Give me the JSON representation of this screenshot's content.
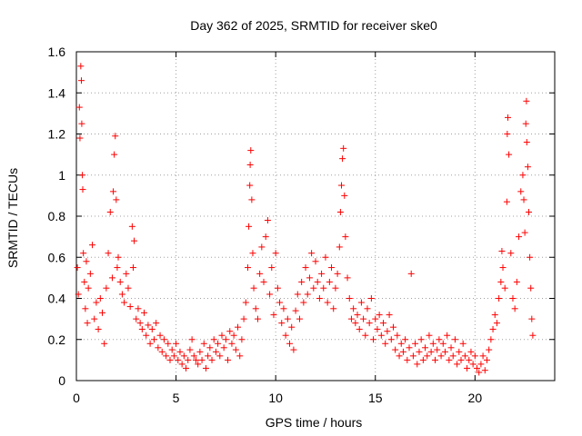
{
  "chart_data": {
    "type": "scatter",
    "title": "Day 362 of 2025, SRMTID for receiver ske0",
    "xlabel": "GPS time / hours",
    "ylabel": "SRMTID / TECUs",
    "xlim": [
      0,
      24
    ],
    "ylim": [
      0,
      1.6
    ],
    "xticks": [
      0,
      5,
      10,
      15,
      20
    ],
    "yticks": [
      0,
      0.2,
      0.4,
      0.6,
      0.8,
      1,
      1.2,
      1.4,
      1.6
    ],
    "xtick_labels": [
      "0",
      "5",
      "10",
      "15",
      "20"
    ],
    "ytick_labels": [
      "0",
      "0.2",
      "0.4",
      "0.6",
      "0.8",
      "1",
      "1.2",
      "1.4",
      "1.6"
    ],
    "grid": true,
    "marker": "+",
    "color": "#ff0000",
    "series": [
      {
        "name": "SRMTID",
        "points": [
          [
            0.05,
            0.55
          ],
          [
            0.1,
            0.42
          ],
          [
            0.15,
            1.33
          ],
          [
            0.18,
            1.18
          ],
          [
            0.22,
            1.53
          ],
          [
            0.25,
            1.46
          ],
          [
            0.27,
            1.25
          ],
          [
            0.3,
            1.0
          ],
          [
            0.32,
            0.93
          ],
          [
            0.35,
            0.62
          ],
          [
            0.4,
            0.48
          ],
          [
            0.45,
            0.35
          ],
          [
            0.5,
            0.58
          ],
          [
            0.55,
            0.28
          ],
          [
            0.6,
            0.45
          ],
          [
            0.7,
            0.52
          ],
          [
            0.8,
            0.66
          ],
          [
            0.9,
            0.3
          ],
          [
            1.0,
            0.38
          ],
          [
            1.1,
            0.25
          ],
          [
            1.2,
            0.4
          ],
          [
            1.3,
            0.33
          ],
          [
            1.4,
            0.18
          ],
          [
            1.5,
            0.45
          ],
          [
            1.6,
            0.62
          ],
          [
            1.7,
            0.82
          ],
          [
            1.8,
            0.5
          ],
          [
            1.85,
            0.92
          ],
          [
            1.9,
            1.1
          ],
          [
            1.95,
            1.19
          ],
          [
            2.0,
            0.88
          ],
          [
            2.05,
            0.55
          ],
          [
            2.1,
            0.6
          ],
          [
            2.2,
            0.48
          ],
          [
            2.3,
            0.42
          ],
          [
            2.4,
            0.38
          ],
          [
            2.5,
            0.52
          ],
          [
            2.6,
            0.45
          ],
          [
            2.7,
            0.36
          ],
          [
            2.8,
            0.75
          ],
          [
            2.85,
            0.55
          ],
          [
            2.9,
            0.68
          ],
          [
            3.0,
            0.3
          ],
          [
            3.1,
            0.35
          ],
          [
            3.2,
            0.28
          ],
          [
            3.3,
            0.25
          ],
          [
            3.4,
            0.33
          ],
          [
            3.5,
            0.22
          ],
          [
            3.6,
            0.27
          ],
          [
            3.7,
            0.18
          ],
          [
            3.8,
            0.25
          ],
          [
            3.9,
            0.2
          ],
          [
            4.0,
            0.28
          ],
          [
            4.1,
            0.16
          ],
          [
            4.2,
            0.22
          ],
          [
            4.3,
            0.14
          ],
          [
            4.4,
            0.2
          ],
          [
            4.5,
            0.12
          ],
          [
            4.6,
            0.18
          ],
          [
            4.7,
            0.1
          ],
          [
            4.8,
            0.15
          ],
          [
            4.9,
            0.12
          ],
          [
            5.0,
            0.18
          ],
          [
            5.1,
            0.1
          ],
          [
            5.2,
            0.14
          ],
          [
            5.3,
            0.08
          ],
          [
            5.4,
            0.12
          ],
          [
            5.5,
            0.06
          ],
          [
            5.6,
            0.1
          ],
          [
            5.7,
            0.15
          ],
          [
            5.8,
            0.2
          ],
          [
            5.9,
            0.12
          ],
          [
            6.0,
            0.1
          ],
          [
            6.1,
            0.08
          ],
          [
            6.2,
            0.14
          ],
          [
            6.3,
            0.1
          ],
          [
            6.4,
            0.18
          ],
          [
            6.5,
            0.06
          ],
          [
            6.6,
            0.12
          ],
          [
            6.7,
            0.16
          ],
          [
            6.8,
            0.1
          ],
          [
            6.9,
            0.2
          ],
          [
            7.0,
            0.14
          ],
          [
            7.1,
            0.18
          ],
          [
            7.2,
            0.12
          ],
          [
            7.3,
            0.22
          ],
          [
            7.4,
            0.16
          ],
          [
            7.5,
            0.2
          ],
          [
            7.6,
            0.1
          ],
          [
            7.7,
            0.24
          ],
          [
            7.8,
            0.18
          ],
          [
            7.9,
            0.22
          ],
          [
            8.0,
            0.15
          ],
          [
            8.1,
            0.26
          ],
          [
            8.2,
            0.12
          ],
          [
            8.3,
            0.2
          ],
          [
            8.4,
            0.3
          ],
          [
            8.5,
            0.38
          ],
          [
            8.6,
            0.55
          ],
          [
            8.65,
            0.75
          ],
          [
            8.7,
            0.95
          ],
          [
            8.72,
            1.05
          ],
          [
            8.75,
            1.12
          ],
          [
            8.8,
            0.88
          ],
          [
            8.85,
            0.62
          ],
          [
            8.9,
            0.45
          ],
          [
            9.0,
            0.35
          ],
          [
            9.1,
            0.3
          ],
          [
            9.2,
            0.52
          ],
          [
            9.3,
            0.65
          ],
          [
            9.4,
            0.48
          ],
          [
            9.5,
            0.7
          ],
          [
            9.6,
            0.78
          ],
          [
            9.7,
            0.42
          ],
          [
            9.8,
            0.55
          ],
          [
            9.9,
            0.32
          ],
          [
            10.0,
            0.62
          ],
          [
            10.1,
            0.45
          ],
          [
            10.2,
            0.38
          ],
          [
            10.3,
            0.28
          ],
          [
            10.4,
            0.35
          ],
          [
            10.5,
            0.22
          ],
          [
            10.6,
            0.3
          ],
          [
            10.7,
            0.18
          ],
          [
            10.8,
            0.26
          ],
          [
            10.9,
            0.15
          ],
          [
            11.0,
            0.34
          ],
          [
            11.1,
            0.42
          ],
          [
            11.2,
            0.3
          ],
          [
            11.3,
            0.48
          ],
          [
            11.4,
            0.38
          ],
          [
            11.5,
            0.55
          ],
          [
            11.6,
            0.42
          ],
          [
            11.7,
            0.5
          ],
          [
            11.8,
            0.62
          ],
          [
            11.9,
            0.45
          ],
          [
            12.0,
            0.58
          ],
          [
            12.1,
            0.48
          ],
          [
            12.2,
            0.4
          ],
          [
            12.3,
            0.52
          ],
          [
            12.4,
            0.45
          ],
          [
            12.5,
            0.6
          ],
          [
            12.6,
            0.38
          ],
          [
            12.7,
            0.48
          ],
          [
            12.8,
            0.55
          ],
          [
            12.9,
            0.35
          ],
          [
            13.0,
            0.45
          ],
          [
            13.1,
            0.52
          ],
          [
            13.2,
            0.65
          ],
          [
            13.25,
            0.82
          ],
          [
            13.3,
            0.95
          ],
          [
            13.35,
            1.08
          ],
          [
            13.4,
            1.13
          ],
          [
            13.45,
            0.9
          ],
          [
            13.5,
            0.7
          ],
          [
            13.6,
            0.5
          ],
          [
            13.7,
            0.4
          ],
          [
            13.8,
            0.3
          ],
          [
            13.9,
            0.35
          ],
          [
            14.0,
            0.28
          ],
          [
            14.1,
            0.32
          ],
          [
            14.2,
            0.25
          ],
          [
            14.3,
            0.38
          ],
          [
            14.4,
            0.3
          ],
          [
            14.5,
            0.22
          ],
          [
            14.6,
            0.35
          ],
          [
            14.7,
            0.28
          ],
          [
            14.8,
            0.4
          ],
          [
            14.9,
            0.2
          ],
          [
            15.0,
            0.3
          ],
          [
            15.1,
            0.25
          ],
          [
            15.2,
            0.32
          ],
          [
            15.3,
            0.22
          ],
          [
            15.4,
            0.28
          ],
          [
            15.5,
            0.18
          ],
          [
            15.6,
            0.24
          ],
          [
            15.7,
            0.32
          ],
          [
            15.8,
            0.2
          ],
          [
            15.9,
            0.26
          ],
          [
            16.0,
            0.15
          ],
          [
            16.1,
            0.22
          ],
          [
            16.2,
            0.12
          ],
          [
            16.3,
            0.18
          ],
          [
            16.4,
            0.14
          ],
          [
            16.5,
            0.2
          ],
          [
            16.6,
            0.1
          ],
          [
            16.7,
            0.16
          ],
          [
            16.8,
            0.52
          ],
          [
            16.9,
            0.12
          ],
          [
            17.0,
            0.18
          ],
          [
            17.1,
            0.08
          ],
          [
            17.2,
            0.14
          ],
          [
            17.3,
            0.2
          ],
          [
            17.4,
            0.1
          ],
          [
            17.5,
            0.16
          ],
          [
            17.6,
            0.12
          ],
          [
            17.7,
            0.22
          ],
          [
            17.8,
            0.14
          ],
          [
            17.9,
            0.18
          ],
          [
            18.0,
            0.1
          ],
          [
            18.1,
            0.15
          ],
          [
            18.2,
            0.2
          ],
          [
            18.3,
            0.12
          ],
          [
            18.4,
            0.18
          ],
          [
            18.5,
            0.14
          ],
          [
            18.6,
            0.22
          ],
          [
            18.7,
            0.1
          ],
          [
            18.8,
            0.16
          ],
          [
            18.9,
            0.12
          ],
          [
            19.0,
            0.2
          ],
          [
            19.1,
            0.08
          ],
          [
            19.2,
            0.14
          ],
          [
            19.3,
            0.1
          ],
          [
            19.4,
            0.18
          ],
          [
            19.5,
            0.12
          ],
          [
            19.6,
            0.06
          ],
          [
            19.7,
            0.1
          ],
          [
            19.8,
            0.14
          ],
          [
            19.9,
            0.08
          ],
          [
            20.0,
            0.12
          ],
          [
            20.1,
            0.06
          ],
          [
            20.2,
            0.04
          ],
          [
            20.3,
            0.08
          ],
          [
            20.4,
            0.12
          ],
          [
            20.5,
            0.05
          ],
          [
            20.6,
            0.1
          ],
          [
            20.7,
            0.15
          ],
          [
            20.8,
            0.2
          ],
          [
            20.9,
            0.25
          ],
          [
            21.0,
            0.32
          ],
          [
            21.1,
            0.28
          ],
          [
            21.2,
            0.4
          ],
          [
            21.3,
            0.48
          ],
          [
            21.35,
            0.63
          ],
          [
            21.4,
            0.55
          ],
          [
            21.5,
            0.45
          ],
          [
            21.6,
            0.87
          ],
          [
            21.62,
            1.2
          ],
          [
            21.65,
            1.28
          ],
          [
            21.7,
            1.1
          ],
          [
            21.8,
            0.62
          ],
          [
            21.9,
            0.4
          ],
          [
            22.0,
            0.35
          ],
          [
            22.1,
            0.48
          ],
          [
            22.2,
            0.7
          ],
          [
            22.3,
            0.92
          ],
          [
            22.4,
            1.0
          ],
          [
            22.45,
            0.88
          ],
          [
            22.5,
            0.72
          ],
          [
            22.55,
            1.25
          ],
          [
            22.58,
            1.36
          ],
          [
            22.6,
            1.16
          ],
          [
            22.65,
            1.04
          ],
          [
            22.7,
            0.82
          ],
          [
            22.75,
            0.6
          ],
          [
            22.8,
            0.45
          ],
          [
            22.85,
            0.3
          ],
          [
            22.9,
            0.22
          ]
        ]
      }
    ]
  }
}
